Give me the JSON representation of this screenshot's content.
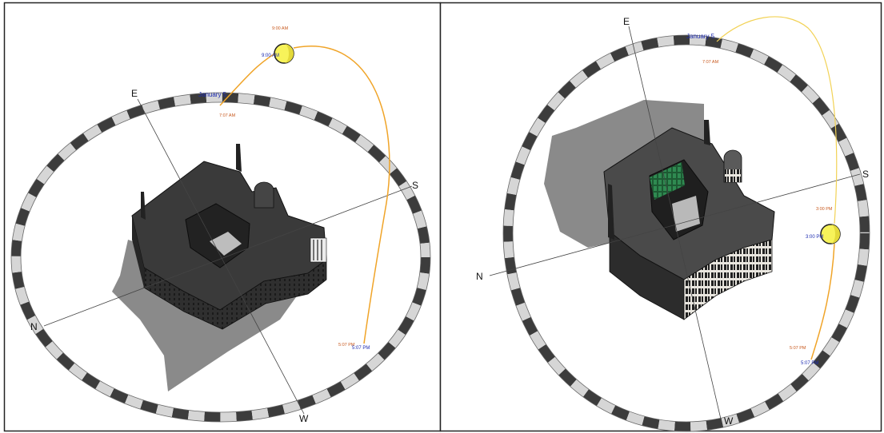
{
  "colors": {
    "sun_path": "#f0a428",
    "sun_fill": "#f7f35a",
    "date_text": "#1c2bb0",
    "time_text": "#c8591e",
    "ring_dark": "#3c3c3c",
    "ring_light": "#d6d6d6",
    "building": "#2c2c2c",
    "shadow": "#8a8a8a"
  },
  "left_panel": {
    "compass": {
      "north": "N",
      "east": "E",
      "south": "S",
      "west": "W"
    },
    "date_label": "January 5",
    "sunrise_label": "7:07 AM",
    "sun_time_label_top": "9:00 AM",
    "sun_time_label_side": "9:00 AM",
    "sunset_label_orange": "5:07 PM",
    "sunset_label_blue": "5:07 PM"
  },
  "right_panel": {
    "compass": {
      "north": "N",
      "east": "E",
      "south": "S",
      "west": "W"
    },
    "date_label": "January 5",
    "sunrise_label": "7:07 AM",
    "sun_time_label_top": "3:00 PM",
    "sun_time_label_side": "3:00 PM",
    "sunset_label_orange": "5:07 PM",
    "sunset_label_blue": "5:07 PM"
  }
}
